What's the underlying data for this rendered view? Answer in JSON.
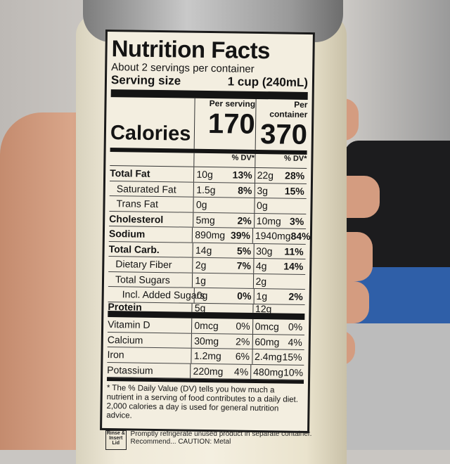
{
  "label": {
    "title": "Nutrition Facts",
    "servings": "About 2 servings per container",
    "serving_size_label": "Serving size",
    "serving_size_value": "1 cup (240mL)",
    "calories_label": "Calories",
    "per_serving_label": "Per serving",
    "per_container_label": "Per container",
    "calories_serving": "170",
    "calories_container": "370",
    "dv_label": "% DV*",
    "nutrients": [
      {
        "name": "Total Fat",
        "s_amt": "10g",
        "s_dv": "13%",
        "c_amt": "22g",
        "c_dv": "28%"
      },
      {
        "name": "Saturated Fat",
        "s_amt": "1.5g",
        "s_dv": "8%",
        "c_amt": "3g",
        "c_dv": "15%"
      },
      {
        "name": "Trans Fat",
        "s_amt": "0g",
        "s_dv": "",
        "c_amt": "0g",
        "c_dv": ""
      },
      {
        "name": "Cholesterol",
        "s_amt": "5mg",
        "s_dv": "2%",
        "c_amt": "10mg",
        "c_dv": "3%"
      },
      {
        "name": "Sodium",
        "s_amt": "890mg",
        "s_dv": "39%",
        "c_amt": "1940mg",
        "c_dv": "84%"
      },
      {
        "name": "Total Carb.",
        "s_amt": "14g",
        "s_dv": "5%",
        "c_amt": "30g",
        "c_dv": "11%"
      },
      {
        "name": "Dietary Fiber",
        "s_amt": "2g",
        "s_dv": "7%",
        "c_amt": "4g",
        "c_dv": "14%"
      },
      {
        "name": "Total Sugars",
        "s_amt": "1g",
        "s_dv": "",
        "c_amt": "2g",
        "c_dv": ""
      },
      {
        "name": "Incl. Added Sugars",
        "s_amt": "0g",
        "s_dv": "0%",
        "c_amt": "1g",
        "c_dv": "2%"
      },
      {
        "name": "Protein",
        "s_amt": "5g",
        "s_dv": "",
        "c_amt": "12g",
        "c_dv": ""
      }
    ],
    "vitamins": [
      {
        "name": "Vitamin D",
        "s_amt": "0mcg",
        "s_dv": "0%",
        "c_amt": "0mcg",
        "c_dv": "0%"
      },
      {
        "name": "Calcium",
        "s_amt": "30mg",
        "s_dv": "2%",
        "c_amt": "60mg",
        "c_dv": "4%"
      },
      {
        "name": "Iron",
        "s_amt": "1.2mg",
        "s_dv": "6%",
        "c_amt": "2.4mg",
        "c_dv": "15%"
      },
      {
        "name": "Potassium",
        "s_amt": "220mg",
        "s_dv": "4%",
        "c_amt": "480mg",
        "c_dv": "10%"
      }
    ],
    "footnote": "* The % Daily Value (DV) tells you how much a nutrient in a serving of food contributes to a daily diet. 2,000 calories a day is used for general nutrition advice."
  },
  "bottom": {
    "rinse": "Rinse & Insert Lid",
    "text": "Promptly refrigerate unused product in separate container. Recommend... CAUTION: Metal"
  }
}
